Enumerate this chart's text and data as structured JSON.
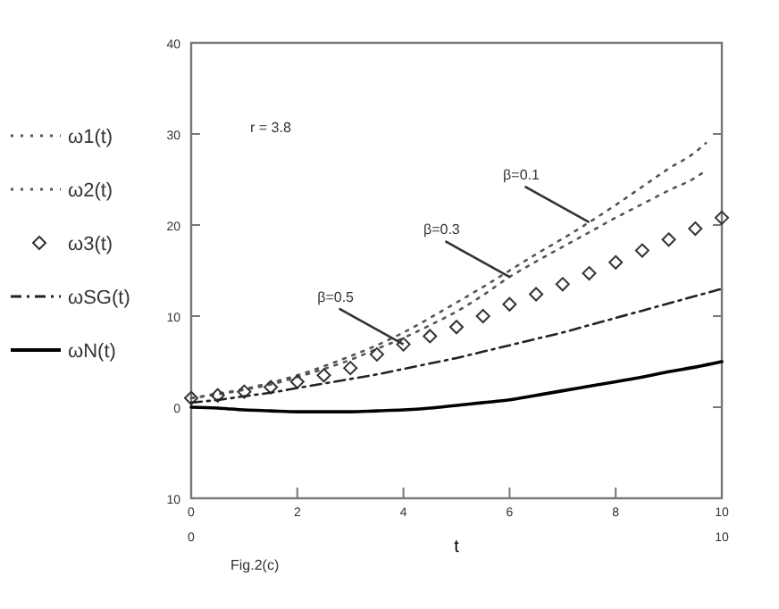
{
  "chart_data": {
    "type": "line",
    "xlabel": "t",
    "xlim": [
      0,
      10
    ],
    "ylim": [
      -10,
      40
    ],
    "xticks": [
      0,
      2,
      4,
      6,
      8,
      10
    ],
    "yticks": [
      {
        "value": -10,
        "label": "10"
      },
      0,
      10,
      20,
      30,
      40
    ],
    "legend": "left",
    "grid": false,
    "series": [
      {
        "name": "ω1(t)",
        "color": "#555555",
        "line_style": "dotted",
        "marker": "none",
        "x": [
          0,
          0.5,
          1,
          1.5,
          2,
          2.5,
          3,
          3.5,
          4,
          4.5,
          5,
          5.5,
          6,
          6.5,
          7,
          7.5,
          8,
          8.5,
          9,
          9.5,
          9.7
        ],
        "values": [
          1,
          1.5,
          2,
          2.7,
          3.5,
          4.5,
          5.6,
          6.8,
          8.2,
          9.8,
          11.5,
          13.2,
          15,
          16.8,
          18.5,
          20.3,
          22.2,
          24.2,
          26.2,
          28,
          29
        ]
      },
      {
        "name": "ω2(t)",
        "color": "#555555",
        "line_style": "dotted",
        "marker": "none",
        "x": [
          0,
          0.5,
          1,
          1.5,
          2,
          2.5,
          3,
          3.5,
          4,
          4.5,
          5,
          5.5,
          6,
          6.5,
          7,
          7.5,
          8,
          8.5,
          9,
          9.5,
          9.7
        ],
        "values": [
          1,
          1.4,
          1.9,
          2.5,
          3.3,
          4.2,
          5.2,
          6.4,
          7.6,
          9,
          10.5,
          12.3,
          14.3,
          16,
          17.6,
          19.2,
          20.8,
          22.3,
          23.8,
          25.2,
          26
        ]
      },
      {
        "name": "ω3(t)",
        "type": "scatter",
        "color": "#333333",
        "marker": "diamond",
        "x": [
          0,
          0.5,
          1,
          1.5,
          2,
          2.5,
          3,
          3.5,
          4,
          4.5,
          5,
          5.5,
          6,
          6.5,
          7,
          7.5,
          8,
          8.5,
          9,
          9.5,
          10
        ],
        "values": [
          1,
          1.3,
          1.7,
          2.2,
          2.8,
          3.5,
          4.3,
          5.8,
          6.9,
          7.8,
          8.8,
          10,
          11.3,
          12.4,
          13.5,
          14.7,
          15.9,
          17.2,
          18.4,
          19.6,
          20.8
        ]
      },
      {
        "name": "ωSG(t)",
        "color": "#222222",
        "line_style": "dashdot",
        "marker": "none",
        "x": [
          0,
          0.5,
          1,
          1.5,
          2,
          2.5,
          3,
          3.5,
          4,
          4.5,
          5,
          5.5,
          6,
          6.5,
          7,
          7.5,
          8,
          8.5,
          9,
          9.5,
          10
        ],
        "values": [
          0.5,
          0.8,
          1.2,
          1.6,
          2.1,
          2.6,
          3.1,
          3.6,
          4.2,
          4.8,
          5.4,
          6.1,
          6.8,
          7.5,
          8.2,
          9,
          9.8,
          10.6,
          11.4,
          12.2,
          13
        ]
      },
      {
        "name": "ωN(t)",
        "color": "#000000",
        "line_style": "solid",
        "marker": "none",
        "x": [
          0,
          0.5,
          1,
          1.5,
          2,
          2.5,
          3,
          3.5,
          4,
          4.5,
          5,
          5.5,
          6,
          6.5,
          7,
          7.5,
          8,
          8.5,
          9,
          9.5,
          10
        ],
        "values": [
          0,
          -0.1,
          -0.3,
          -0.4,
          -0.5,
          -0.5,
          -0.5,
          -0.4,
          -0.3,
          -0.1,
          0.2,
          0.5,
          0.8,
          1.3,
          1.8,
          2.3,
          2.8,
          3.3,
          3.9,
          4.4,
          5
        ]
      }
    ],
    "annotations": [
      "r = 3.8",
      "Fig.2(c)",
      "0",
      "10",
      {
        "text": "β=0.1",
        "x": 7.5,
        "y": 20.3
      },
      {
        "text": "β=0.3",
        "x": 6,
        "y": 14.3
      },
      {
        "text": "β=0.5",
        "x": 4,
        "y": 6.9
      }
    ]
  }
}
